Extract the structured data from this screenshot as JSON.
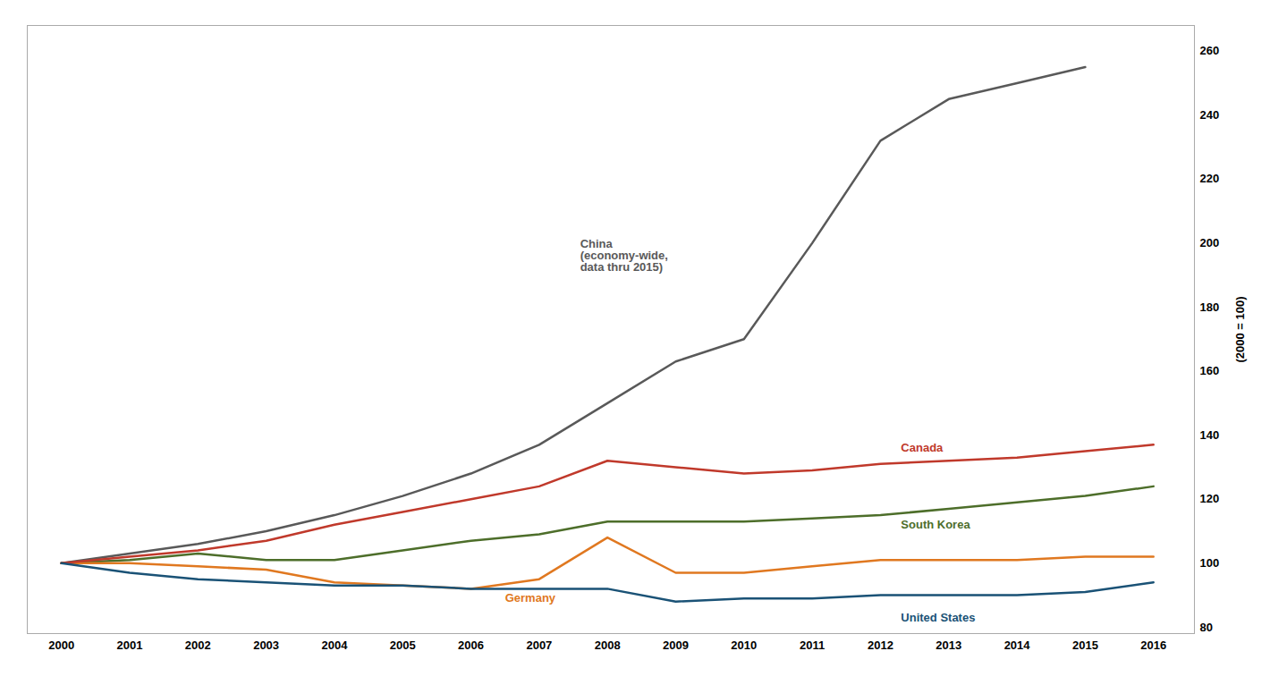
{
  "chart_data": {
    "type": "line",
    "x": [
      2000,
      2001,
      2002,
      2003,
      2004,
      2005,
      2006,
      2007,
      2008,
      2009,
      2010,
      2011,
      2012,
      2013,
      2014,
      2015,
      2016
    ],
    "xlim": [
      1999.5,
      2016.6
    ],
    "xticks": [
      2000,
      2001,
      2002,
      2003,
      2004,
      2005,
      2006,
      2007,
      2008,
      2009,
      2010,
      2011,
      2012,
      2013,
      2014,
      2015,
      2016
    ],
    "ylim": [
      78,
      268
    ],
    "yticks": [
      80,
      100,
      120,
      140,
      160,
      180,
      200,
      220,
      240,
      260
    ],
    "ylabel": "(2000 = 100)",
    "grid": false,
    "series": [
      {
        "color": "#595959",
        "values": [
          100,
          103,
          106,
          110,
          115,
          121,
          128,
          137,
          150,
          163,
          170,
          200,
          232,
          245,
          250,
          255,
          null
        ]
      },
      {
        "color": "#4d6e2a",
        "values": [
          100,
          101,
          103,
          101,
          101,
          104,
          107,
          109,
          113,
          113,
          113,
          114,
          115,
          117,
          119,
          121,
          124
        ]
      },
      {
        "color": "#e07820",
        "values": [
          100,
          100,
          99,
          98,
          94,
          93,
          92,
          95,
          108,
          97,
          97,
          99,
          101,
          101,
          101,
          102,
          102
        ]
      },
      {
        "color": "#c0392b",
        "values": [
          100,
          102,
          104,
          107,
          112,
          116,
          120,
          124,
          132,
          130,
          128,
          129,
          131,
          132,
          133,
          135,
          137
        ]
      },
      {
        "color": "#1a5276",
        "values": [
          100,
          97,
          95,
          94,
          93,
          93,
          92,
          92,
          92,
          88,
          89,
          89,
          90,
          90,
          90,
          91,
          94
        ]
      }
    ],
    "annotations": [
      {
        "text": "China\n(economy-wide,\ndata thru 2015)",
        "x": 2007.6,
        "y": 196,
        "color": "#595959"
      },
      {
        "text": "Canada",
        "x": 2012.3,
        "y": 136,
        "color": "#c0392b"
      },
      {
        "text": "South Korea",
        "x": 2012.3,
        "y": 112,
        "color": "#4d6e2a"
      },
      {
        "text": "Germany",
        "x": 2006.5,
        "y": 89,
        "color": "#e07820"
      },
      {
        "text": "United States",
        "x": 2012.3,
        "y": 83,
        "color": "#1a5276"
      }
    ]
  }
}
